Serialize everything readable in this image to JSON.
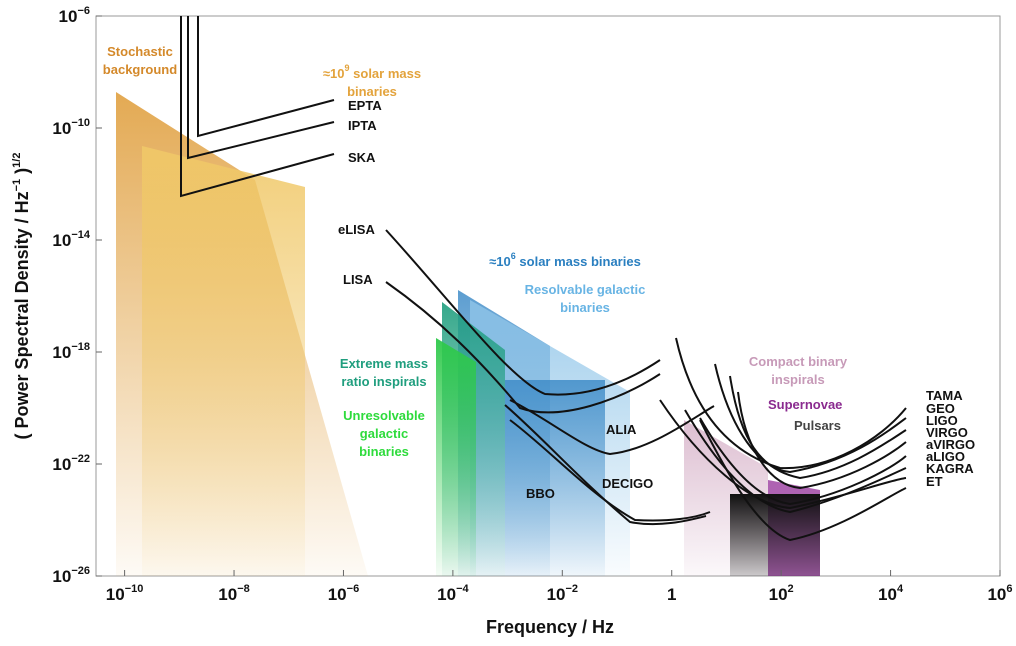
{
  "chart_data": {
    "type": "area",
    "title": "",
    "xlabel": "Frequency / Hz",
    "ylabel": "( Power Spectral Density / Hz",
    "ylabel_exp1": "−1",
    "ylabel_close": " )",
    "ylabel_exp2": "1/2",
    "xscale": "log",
    "yscale": "log",
    "xlim": [
      3e-11,
      1000000.0
    ],
    "ylim": [
      1e-26,
      1e-06
    ],
    "grid": false,
    "x_ticks": [
      {
        "base": "10",
        "exp": "−10",
        "value": 1e-10
      },
      {
        "base": "10",
        "exp": "−8",
        "value": 1e-08
      },
      {
        "base": "10",
        "exp": "−6",
        "value": 1e-06
      },
      {
        "base": "10",
        "exp": "−4",
        "value": 0.0001
      },
      {
        "base": "10",
        "exp": "−2",
        "value": 0.01
      },
      {
        "base": "10",
        "exp": "0",
        "value": 1,
        "plain": "1"
      },
      {
        "base": "10",
        "exp": "2",
        "value": 100
      },
      {
        "base": "10",
        "exp": "4",
        "value": 10000.0
      },
      {
        "base": "10",
        "exp": "6",
        "value": 1000000.0
      }
    ],
    "y_ticks": [
      {
        "base": "10",
        "exp": "−6",
        "value": 1e-06
      },
      {
        "base": "10",
        "exp": "−10",
        "value": 1e-10
      },
      {
        "base": "10",
        "exp": "−14",
        "value": 1e-14
      },
      {
        "base": "10",
        "exp": "−18",
        "value": 1e-18
      },
      {
        "base": "10",
        "exp": "−22",
        "value": 1e-22
      },
      {
        "base": "10",
        "exp": "−26",
        "value": 1e-26
      }
    ],
    "regions": [
      {
        "name": "Stochastic background",
        "color": "#e3a33c",
        "fade": true,
        "points": [
          [
            1e-10,
            3e-09
          ],
          [
            2.5e-08,
            1e-12
          ],
          [
            4e-06,
            1e-26
          ],
          [
            1e-10,
            1e-26
          ]
        ]
      },
      {
        "name": "≈10^9 solar mass binaries",
        "color": "#f0c868",
        "fade": false,
        "points": [
          [
            2.5e-10,
            2e-11
          ],
          [
            3e-07,
            5e-13
          ],
          [
            3e-07,
            1e-26
          ],
          [
            2.5e-10,
            1e-26
          ]
        ]
      },
      {
        "name": "Extreme mass ratio inspirals",
        "color": "#2ca87a",
        "fade": true,
        "points": [
          [
            0.0001,
            1e-16
          ],
          [
            0.01,
            4e-18
          ],
          [
            0.01,
            1e-26
          ],
          [
            0.0001,
            1e-26
          ]
        ]
      },
      {
        "name": "Unresolvable galactic binaries",
        "color": "#33d24a",
        "fade": true,
        "points": [
          [
            8e-05,
            1e-18
          ],
          [
            0.001,
            1e-19
          ],
          [
            0.001,
            1e-26
          ],
          [
            8e-05,
            1e-26
          ]
        ]
      },
      {
        "name": "≈10^6 solar mass binaries",
        "color": "#3f8cc8",
        "fade": true,
        "points": [
          [
            0.0002,
            2e-16
          ],
          [
            0.01,
            1e-18
          ],
          [
            0.01,
            1e-26
          ],
          [
            0.0002,
            1e-26
          ]
        ]
      },
      {
        "name": "Resolvable galactic binaries",
        "color": "#8ec4e8",
        "fade": true,
        "points": [
          [
            0.0004,
            5e-17
          ],
          [
            0.3,
            2e-20
          ],
          [
            0.3,
            1e-26
          ],
          [
            0.0004,
            1e-26
          ]
        ]
      },
      {
        "name": "Compact binary inspirals",
        "color": "#d9b7cc",
        "fade": true,
        "points": [
          [
            3,
            1e-21
          ],
          [
            100,
            1e-23
          ],
          [
            100,
            1e-26
          ],
          [
            3,
            1e-26
          ]
        ]
      },
      {
        "name": "Supernovae",
        "color": "#9a3c9f",
        "fade": false,
        "points": [
          [
            100,
            4e-23
          ],
          [
            1000,
            1.5e-23
          ],
          [
            1000,
            1e-26
          ],
          [
            100,
            1e-26
          ]
        ]
      },
      {
        "name": "Pulsars",
        "color": "#1a1a1a",
        "fade": true,
        "points": [
          [
            20,
            2e-23
          ],
          [
            1000,
            2e-23
          ],
          [
            1000,
            1e-26
          ],
          [
            20,
            1e-26
          ]
        ]
      }
    ],
    "curves": [
      {
        "name": "EPTA",
        "points": [
          [
            3e-09,
            1e-06
          ],
          [
            3e-09,
            3e-11
          ],
          [
            3e-07,
            1e-09
          ]
        ]
      },
      {
        "name": "IPTA",
        "points": [
          [
            2e-09,
            1e-06
          ],
          [
            2e-09,
            5e-12
          ],
          [
            3e-07,
            2e-10
          ]
        ]
      },
      {
        "name": "SKA",
        "points": [
          [
            1.5e-09,
            1e-06
          ],
          [
            1.5e-09,
            6e-13
          ],
          [
            3e-07,
            5e-12
          ]
        ]
      },
      {
        "name": "eLISA",
        "points": [
          [
            3e-05,
            1e-14
          ],
          [
            0.001,
            1e-18
          ],
          [
            0.01,
            1e-20
          ],
          [
            0.1,
            3e-20
          ],
          [
            1,
            1e-18
          ]
        ]
      },
      {
        "name": "LISA",
        "points": [
          [
            3e-05,
            1e-15
          ],
          [
            0.001,
            1e-19
          ],
          [
            0.01,
            5e-21
          ],
          [
            0.1,
            8e-21
          ],
          [
            1,
            5e-19
          ]
        ]
      },
      {
        "name": "ALIA",
        "points": [
          [
            0.001,
            1e-18
          ],
          [
            0.01,
            2e-21
          ],
          [
            0.1,
            2e-22
          ],
          [
            1,
            2e-21
          ],
          [
            10,
            1e-20
          ]
        ]
      },
      {
        "name": "DECIGO",
        "points": [
          [
            0.001,
            1e-18
          ],
          [
            0.01,
            1e-21
          ],
          [
            0.1,
            1e-23
          ],
          [
            1,
            2e-25
          ],
          [
            10,
            2e-25
          ]
        ]
      },
      {
        "name": "BBO",
        "points": [
          [
            0.001,
            1e-18
          ],
          [
            0.01,
            1e-21
          ],
          [
            0.1,
            1e-23
          ],
          [
            1,
            1e-25
          ]
        ]
      }
    ],
    "ground_curves": [
      {
        "name": "TAMA",
        "points": [
          [
            4,
            1e-18
          ],
          [
            30,
            1e-22
          ],
          [
            300,
            8e-23
          ],
          [
            30000.0,
            1e-20
          ]
        ]
      },
      {
        "name": "GEO",
        "points": [
          [
            10,
            3e-19
          ],
          [
            60,
            1e-22
          ],
          [
            500,
            3e-23
          ],
          [
            30000.0,
            3e-21
          ]
        ]
      },
      {
        "name": "LIGO",
        "points": [
          [
            10,
            1e-19
          ],
          [
            100,
            5e-23
          ],
          [
            500,
            2e-23
          ],
          [
            30000.0,
            5e-21
          ]
        ]
      },
      {
        "name": "VIRGO",
        "points": [
          [
            20,
            1e-20
          ],
          [
            100,
            3e-23
          ],
          [
            400,
            2e-23
          ],
          [
            30000.0,
            3e-21
          ]
        ]
      },
      {
        "name": "aVIRGO",
        "points": [
          [
            10,
            1e-20
          ],
          [
            100,
            1e-23
          ],
          [
            400,
            5e-24
          ],
          [
            30000.0,
            2e-21
          ]
        ]
      },
      {
        "name": "aLIGO",
        "points": [
          [
            10,
            1e-21
          ],
          [
            100,
            5e-24
          ],
          [
            400,
            3e-24
          ],
          [
            30000.0,
            1e-21
          ]
        ]
      },
      {
        "name": "KAGRA",
        "points": [
          [
            20,
            1e-21
          ],
          [
            100,
            4e-24
          ],
          [
            400,
            3e-24
          ],
          [
            30000.0,
            7e-22
          ]
        ]
      },
      {
        "name": "ET",
        "points": [
          [
            3,
            1e-20
          ],
          [
            30,
            1e-23
          ],
          [
            300,
            3e-25
          ],
          [
            30000.0,
            3e-22
          ]
        ]
      }
    ]
  },
  "labels": {
    "stochastic_line1": "Stochastic",
    "stochastic_line2": "background",
    "smbh9_prefix": "≈10",
    "smbh9_exp": "9",
    "smbh9_suffix": " solar mass",
    "smbh9_line2": "binaries",
    "epta": "EPTA",
    "ipta": "IPTA",
    "ska": "SKA",
    "elisa": "eLISA",
    "lisa": "LISA",
    "smbh6_prefix": "≈10",
    "smbh6_exp": "6",
    "smbh6_suffix": " solar mass binaries",
    "resolvable_line1": "Resolvable galactic",
    "resolvable_line2": "binaries",
    "emri_line1": "Extreme mass",
    "emri_line2": "ratio inspirals",
    "unres_line1": "Unresolvable",
    "unres_line2": "galactic",
    "unres_line3": "binaries",
    "alia": "ALIA",
    "bbo": "BBO",
    "decigo": "DECIGO",
    "compact_line1": "Compact binary",
    "compact_line2": "inspirals",
    "supernovae": "Supernovae",
    "pulsars": "Pulsars",
    "tama": "TAMA",
    "geo": "GEO",
    "ligo": "LIGO",
    "virgo": "VIRGO",
    "avirgo": "aVIRGO",
    "aligo": "aLIGO",
    "kagra": "KAGRA",
    "et": "ET"
  },
  "colors": {
    "stochastic": "#d4892a",
    "smbh9": "#e3a33c",
    "smbh6": "#2a7fc0",
    "resolvable": "#68b4e4",
    "emri": "#1f9e7e",
    "unres": "#2edb3c",
    "compact": "#c79ab8",
    "supernovae": "#8a2a8f",
    "pulsars": "#444444",
    "detector": "#111111"
  }
}
